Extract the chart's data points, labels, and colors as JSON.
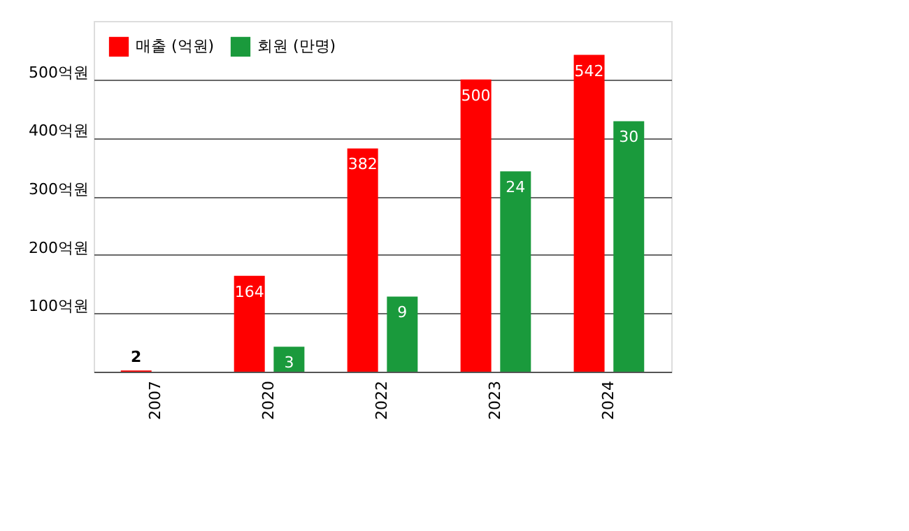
{
  "chart_data": {
    "type": "bar",
    "categories": [
      "2007",
      "2020",
      "2022",
      "2023",
      "2024"
    ],
    "series": [
      {
        "name": "매출 (억원)",
        "color": "#ff0000",
        "values": [
          2,
          164,
          382,
          500,
          542
        ]
      },
      {
        "name": "회원 (만명)",
        "color": "#1a9a3c",
        "axis": "y2",
        "values": [
          null,
          3,
          9,
          24,
          30
        ]
      }
    ],
    "ylim": [
      0,
      600
    ],
    "yticks": [
      {
        "value": 100,
        "label": "100억원"
      },
      {
        "value": 200,
        "label": "200억원"
      },
      {
        "value": 300,
        "label": "300억원"
      },
      {
        "value": 400,
        "label": "400억원"
      },
      {
        "value": 500,
        "label": "500억원"
      }
    ],
    "y2lim": [
      0,
      42
    ],
    "tick_labels": "xy",
    "grid": "y",
    "legend": "top left",
    "data_labels": true
  }
}
